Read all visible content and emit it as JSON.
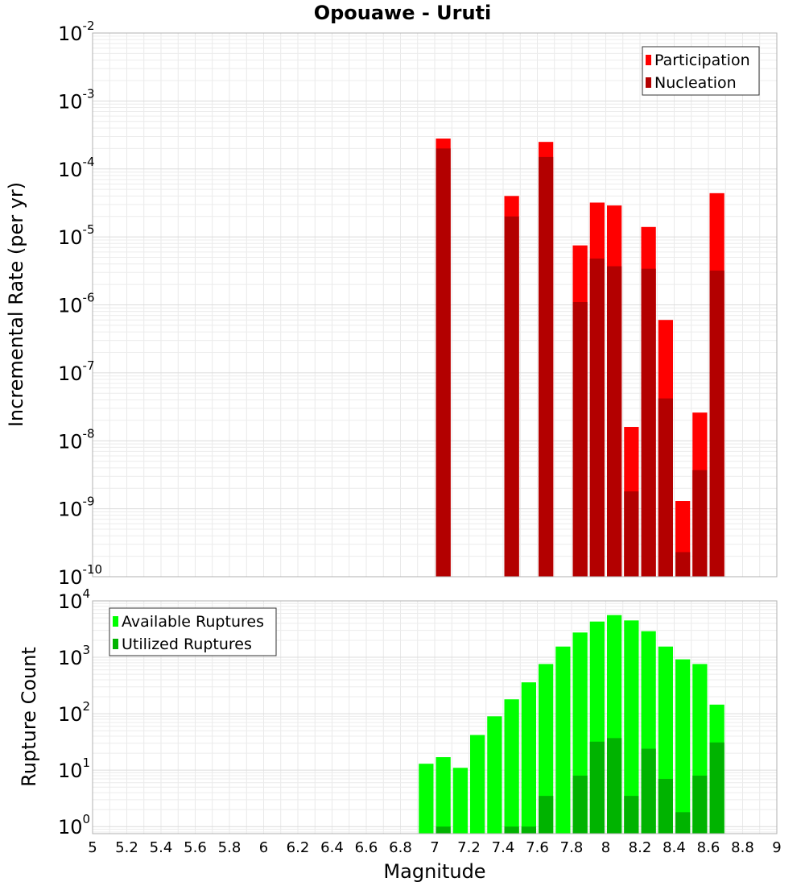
{
  "title": "Opouawe - Uruti",
  "chart_data": [
    {
      "type": "bar",
      "xlabel": "Magnitude",
      "ylabel": "Incremental Rate (per yr)",
      "yscale": "log",
      "xlim": [
        5,
        9
      ],
      "ylim": [
        1e-10,
        0.01
      ],
      "y_ticks": [
        {
          "base": "10",
          "exp": "-10"
        },
        {
          "base": "10",
          "exp": "-9"
        },
        {
          "base": "10",
          "exp": "-8"
        },
        {
          "base": "10",
          "exp": "-7"
        },
        {
          "base": "10",
          "exp": "-6"
        },
        {
          "base": "10",
          "exp": "-5"
        },
        {
          "base": "10",
          "exp": "-4"
        },
        {
          "base": "10",
          "exp": "-3"
        },
        {
          "base": "10",
          "exp": "-2"
        }
      ],
      "grid": true,
      "legend_position": "top-right",
      "series": [
        {
          "name": "Participation",
          "color": "#ff0000",
          "points": [
            {
              "x": 7.05,
              "y": 0.00028
            },
            {
              "x": 7.45,
              "y": 4e-05
            },
            {
              "x": 7.65,
              "y": 0.00025
            },
            {
              "x": 7.85,
              "y": 7.5e-06
            },
            {
              "x": 7.95,
              "y": 3.2e-05
            },
            {
              "x": 8.05,
              "y": 2.9e-05
            },
            {
              "x": 8.25,
              "y": 1.4e-05
            },
            {
              "x": 8.15,
              "y": 1.6e-08
            },
            {
              "x": 8.35,
              "y": 6e-07
            },
            {
              "x": 8.45,
              "y": 1.3e-09
            },
            {
              "x": 8.55,
              "y": 2.6e-08
            },
            {
              "x": 8.65,
              "y": 4.4e-05
            }
          ]
        },
        {
          "name": "Nucleation",
          "color": "#b30000",
          "points": [
            {
              "x": 7.05,
              "y": 0.0002
            },
            {
              "x": 7.45,
              "y": 2e-05
            },
            {
              "x": 7.65,
              "y": 0.00015
            },
            {
              "x": 7.85,
              "y": 1.1e-06
            },
            {
              "x": 7.95,
              "y": 4.8e-06
            },
            {
              "x": 8.05,
              "y": 3.7e-06
            },
            {
              "x": 8.15,
              "y": 1.8e-09
            },
            {
              "x": 8.25,
              "y": 3.4e-06
            },
            {
              "x": 8.35,
              "y": 4.2e-08
            },
            {
              "x": 8.45,
              "y": 2.3e-10
            },
            {
              "x": 8.55,
              "y": 3.7e-09
            },
            {
              "x": 8.65,
              "y": 3.2e-06
            }
          ]
        }
      ]
    },
    {
      "type": "bar",
      "xlabel": "Magnitude",
      "ylabel": "Rupture Count",
      "yscale": "log",
      "xlim": [
        5,
        9
      ],
      "ylim": [
        0.75,
        10000
      ],
      "x_ticks": [
        "5",
        "5.2",
        "5.4",
        "5.6",
        "5.8",
        "6",
        "6.2",
        "6.4",
        "6.6",
        "6.8",
        "7",
        "7.2",
        "7.4",
        "7.6",
        "7.8",
        "8",
        "8.2",
        "8.4",
        "8.6",
        "8.8",
        "9"
      ],
      "y_ticks": [
        {
          "base": "10",
          "exp": "0"
        },
        {
          "base": "10",
          "exp": "1"
        },
        {
          "base": "10",
          "exp": "2"
        },
        {
          "base": "10",
          "exp": "3"
        },
        {
          "base": "10",
          "exp": "4"
        }
      ],
      "grid": true,
      "legend_position": "top-left",
      "series": [
        {
          "name": "Available Ruptures",
          "color": "#00ff00",
          "points": [
            {
              "x": 6.95,
              "y": 13
            },
            {
              "x": 7.05,
              "y": 17
            },
            {
              "x": 7.15,
              "y": 11
            },
            {
              "x": 7.25,
              "y": 42
            },
            {
              "x": 7.35,
              "y": 90
            },
            {
              "x": 7.45,
              "y": 180
            },
            {
              "x": 7.55,
              "y": 360
            },
            {
              "x": 7.65,
              "y": 760
            },
            {
              "x": 7.75,
              "y": 1550
            },
            {
              "x": 7.85,
              "y": 2750
            },
            {
              "x": 7.95,
              "y": 4300
            },
            {
              "x": 8.05,
              "y": 5600
            },
            {
              "x": 8.15,
              "y": 4500
            },
            {
              "x": 8.25,
              "y": 2900
            },
            {
              "x": 8.35,
              "y": 1550
            },
            {
              "x": 8.45,
              "y": 920
            },
            {
              "x": 8.55,
              "y": 760
            },
            {
              "x": 8.65,
              "y": 145
            }
          ]
        },
        {
          "name": "Utilized Ruptures",
          "color": "#00b300",
          "points": [
            {
              "x": 7.05,
              "y": 1
            },
            {
              "x": 7.45,
              "y": 1
            },
            {
              "x": 7.55,
              "y": 1
            },
            {
              "x": 7.65,
              "y": 3.5
            },
            {
              "x": 7.85,
              "y": 8
            },
            {
              "x": 7.95,
              "y": 32
            },
            {
              "x": 8.05,
              "y": 37
            },
            {
              "x": 8.15,
              "y": 3.5
            },
            {
              "x": 8.25,
              "y": 24
            },
            {
              "x": 8.35,
              "y": 7
            },
            {
              "x": 8.45,
              "y": 1.8
            },
            {
              "x": 8.55,
              "y": 8
            },
            {
              "x": 8.65,
              "y": 31
            }
          ]
        }
      ]
    }
  ]
}
